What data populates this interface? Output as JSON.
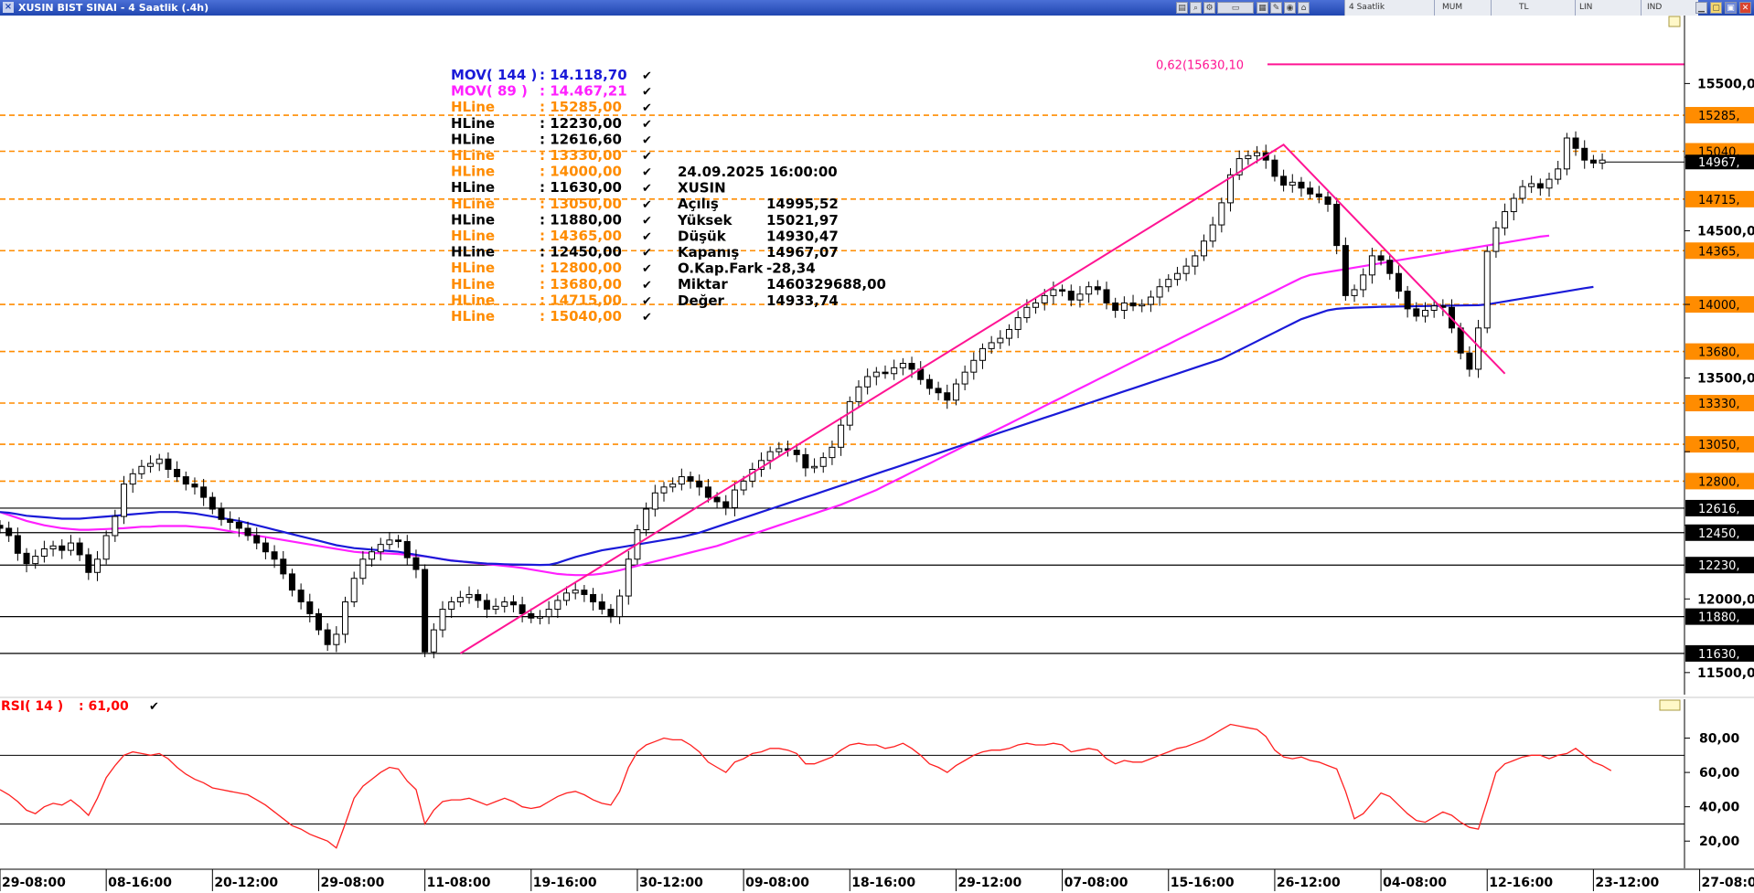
{
  "window": {
    "title": "XUSIN BIST SINAI - 4 Saatlik (.4h)"
  },
  "toolbar": {
    "period": "4 Saatlik",
    "chart_style": "MUM",
    "currency": "TL",
    "scale": "LIN",
    "mode": "IND"
  },
  "colors": {
    "ma144": "#1a1ad8",
    "ma89": "#ff20ff",
    "hline_orange": "#ff8c00",
    "hline_black": "#000000",
    "trend": "#ff1493",
    "rsi": "#ff2020",
    "fib": "#ff1493"
  },
  "legend": [
    {
      "name": "MOV( 144 )",
      "value": ": 14.118,70",
      "color": "#1a1ad8"
    },
    {
      "name": "MOV( 89 )",
      "value": ": 14.467,21",
      "color": "#ff20ff"
    },
    {
      "name": "HLine",
      "value": ": 15285,00",
      "color": "#ff8c00"
    },
    {
      "name": "HLine",
      "value": ": 12230,00",
      "color": "#000000"
    },
    {
      "name": "HLine",
      "value": ": 12616,60",
      "color": "#000000"
    },
    {
      "name": "HLine",
      "value": ": 13330,00",
      "color": "#ff8c00"
    },
    {
      "name": "HLine",
      "value": ": 14000,00",
      "color": "#ff8c00"
    },
    {
      "name": "HLine",
      "value": ": 11630,00",
      "color": "#000000"
    },
    {
      "name": "HLine",
      "value": ": 13050,00",
      "color": "#ff8c00"
    },
    {
      "name": "HLine",
      "value": ": 11880,00",
      "color": "#000000"
    },
    {
      "name": "HLine",
      "value": ": 14365,00",
      "color": "#ff8c00"
    },
    {
      "name": "HLine",
      "value": ": 12450,00",
      "color": "#000000"
    },
    {
      "name": "HLine",
      "value": ": 12800,00",
      "color": "#ff8c00"
    },
    {
      "name": "HLine",
      "value": ": 13680,00",
      "color": "#ff8c00"
    },
    {
      "name": "HLine",
      "value": ": 14715,00",
      "color": "#ff8c00"
    },
    {
      "name": "HLine",
      "value": ": 15040,00",
      "color": "#ff8c00"
    }
  ],
  "info_box": {
    "datetime": "24.09.2025  16:00:00",
    "symbol": "XUSIN",
    "rows": [
      {
        "label": "Açılış",
        "value": "14995,52"
      },
      {
        "label": "Yüksek",
        "value": "15021,97"
      },
      {
        "label": "Düşük",
        "value": "14930,47"
      },
      {
        "label": "Kapanış",
        "value": "14967,07"
      },
      {
        "label": "O.Kap.Fark",
        "value": "-28,34"
      },
      {
        "label": "Miktar",
        "value": "1460329688,00"
      },
      {
        "label": "Değer",
        "value": "14933,74"
      }
    ]
  },
  "fib_label": "0,62(15630,10",
  "last_price_label": "14967,",
  "rsi_legend": {
    "name": "RSI( 14 )",
    "value": ": 61,00"
  },
  "chart_data": {
    "type": "candlestick",
    "price_axis": {
      "ylim": [
        11350,
        15850
      ],
      "ticks": [
        11500,
        12000,
        12500,
        13000,
        13500,
        14000,
        14500,
        15000,
        15500
      ],
      "tick_labels": [
        "11500,0",
        "12000,0",
        "",
        "",
        "13500,0",
        "",
        "14500,0",
        "",
        "15500,0"
      ]
    },
    "x_tick_labels": [
      "29-08:00",
      "08-16:00",
      "20-12:00",
      "29-08:00",
      "11-08:00",
      "19-16:00",
      "30-12:00",
      "09-08:00",
      "18-16:00",
      "29-12:00",
      "07-08:00",
      "15-16:00",
      "26-12:00",
      "04-08:00",
      "12-16:00",
      "23-12:00",
      "27-08:00"
    ],
    "x_tick_index": [
      0,
      12,
      24,
      36,
      48,
      60,
      72,
      84,
      96,
      108,
      120,
      132,
      144,
      156,
      168,
      180,
      192
    ],
    "hlines": [
      {
        "value": 15285,
        "label": "15285,",
        "style": "dashed",
        "color": "#ff8c00"
      },
      {
        "value": 15040,
        "label": "15040,",
        "style": "dashed",
        "color": "#ff8c00"
      },
      {
        "value": 14715,
        "label": "14715,",
        "style": "dashed",
        "color": "#ff8c00"
      },
      {
        "value": 14365,
        "label": "14365,",
        "style": "dashed",
        "color": "#ff8c00"
      },
      {
        "value": 14000,
        "label": "14000,",
        "style": "dashed",
        "color": "#ff8c00"
      },
      {
        "value": 13680,
        "label": "13680,",
        "style": "dashed",
        "color": "#ff8c00"
      },
      {
        "value": 13330,
        "label": "13330,",
        "style": "dashed",
        "color": "#ff8c00"
      },
      {
        "value": 13050,
        "label": "13050,",
        "style": "dashed",
        "color": "#ff8c00"
      },
      {
        "value": 12800,
        "label": "12800,",
        "style": "dashed",
        "color": "#ff8c00"
      },
      {
        "value": 12616.6,
        "label": "12616,",
        "style": "solid",
        "color": "#000000"
      },
      {
        "value": 12450,
        "label": "12450,",
        "style": "solid",
        "color": "#000000"
      },
      {
        "value": 12230,
        "label": "12230,",
        "style": "solid",
        "color": "#000000"
      },
      {
        "value": 11880,
        "label": "11880,",
        "style": "solid",
        "color": "#000000"
      },
      {
        "value": 11630,
        "label": "11630,",
        "style": "solid",
        "color": "#000000"
      }
    ],
    "fib_level": 15630.1,
    "last_price": 14967.07,
    "trendlines": [
      [
        [
          52,
          11630
        ],
        [
          145,
          15085
        ],
        [
          170,
          13530
        ]
      ]
    ],
    "closes": [
      12480,
      12430,
      12310,
      12240,
      12290,
      12340,
      12360,
      12330,
      12380,
      12300,
      12180,
      12270,
      12430,
      12560,
      12780,
      12850,
      12900,
      12920,
      12950,
      12880,
      12830,
      12780,
      12760,
      12690,
      12610,
      12540,
      12520,
      12480,
      12430,
      12380,
      12320,
      12270,
      12170,
      12060,
      11980,
      11900,
      11790,
      11690,
      11760,
      11980,
      12140,
      12270,
      12320,
      12370,
      12400,
      12390,
      12280,
      12200,
      11640,
      11790,
      11930,
      11980,
      12010,
      12030,
      11990,
      11930,
      11950,
      11980,
      11960,
      11900,
      11870,
      11880,
      11930,
      11990,
      12040,
      12060,
      12030,
      11980,
      11930,
      11880,
      12020,
      12270,
      12470,
      12610,
      12720,
      12760,
      12780,
      12830,
      12800,
      12760,
      12690,
      12660,
      12620,
      12740,
      12800,
      12880,
      12940,
      13000,
      13020,
      13010,
      12980,
      12890,
      12900,
      12960,
      13030,
      13180,
      13340,
      13440,
      13510,
      13540,
      13530,
      13570,
      13600,
      13560,
      13490,
      13430,
      13400,
      13350,
      13460,
      13540,
      13620,
      13700,
      13740,
      13770,
      13830,
      13910,
      13980,
      14010,
      14060,
      14100,
      14090,
      14030,
      14070,
      14120,
      14100,
      14010,
      13960,
      14010,
      13990,
      14000,
      14050,
      14120,
      14170,
      14210,
      14260,
      14330,
      14430,
      14540,
      14690,
      14880,
      14990,
      15010,
      15030,
      14980,
      14870,
      14810,
      14830,
      14790,
      14750,
      14730,
      14680,
      14400,
      14060,
      14100,
      14200,
      14330,
      14300,
      14210,
      14090,
      13970,
      13920,
      13960,
      13990,
      13980,
      13840,
      13670,
      13560,
      13840,
      14360,
      14520,
      14630,
      14720,
      14800,
      14820,
      14790,
      14850,
      14920,
      15130,
      15060,
      14980,
      14960,
      14980
    ],
    "ma144": [
      12590,
      12585,
      12575,
      12565,
      12560,
      12555,
      12550,
      12545,
      12545,
      12545,
      12550,
      12555,
      12560,
      12565,
      12570,
      12575,
      12580,
      12585,
      12590,
      12590,
      12590,
      12585,
      12580,
      12570,
      12560,
      12550,
      12540,
      12530,
      12515,
      12500,
      12485,
      12470,
      12455,
      12440,
      12425,
      12410,
      12395,
      12380,
      12365,
      12355,
      12345,
      12340,
      12335,
      12330,
      12325,
      12320,
      12310,
      12300,
      12290,
      12280,
      12270,
      12260,
      12255,
      12250,
      12245,
      12240,
      12238,
      12236,
      12234,
      12233,
      12232,
      12231,
      12232,
      12245,
      12265,
      12285,
      12300,
      12315,
      12330,
      12340,
      12350,
      12360,
      12370,
      12380,
      12390,
      12400,
      12410,
      12420,
      12435,
      12450,
      12470,
      12490,
      12510,
      12530,
      12550,
      12570,
      12590,
      12610,
      12630,
      12650,
      12670,
      12690,
      12710,
      12730,
      12750,
      12770,
      12790,
      12810,
      12830,
      12850,
      12870,
      12890,
      12910,
      12930,
      12950,
      12970,
      12990,
      13010,
      13030,
      13050,
      13070,
      13090,
      13110,
      13130,
      13150,
      13170,
      13190,
      13210,
      13230,
      13250,
      13270,
      13290,
      13310,
      13330,
      13350,
      13370,
      13390,
      13410,
      13430,
      13450,
      13470,
      13490,
      13510,
      13530,
      13550,
      13570,
      13590,
      13610,
      13630,
      13660,
      13690,
      13720,
      13750,
      13780,
      13810,
      13840,
      13870,
      13900,
      13920,
      13940,
      13960,
      13970,
      13975,
      13978,
      13980,
      13982,
      13984,
      13985,
      13986,
      13987,
      13988,
      13989,
      13990,
      13991,
      13992,
      13993,
      13994,
      13995,
      14000,
      14010,
      14020,
      14030,
      14040,
      14050,
      14060,
      14070,
      14080,
      14090,
      14100,
      14110,
      14119
    ],
    "ma89": [
      12590,
      12570,
      12550,
      12530,
      12515,
      12500,
      12490,
      12480,
      12475,
      12470,
      12470,
      12472,
      12475,
      12478,
      12480,
      12485,
      12490,
      12490,
      12495,
      12495,
      12495,
      12495,
      12490,
      12485,
      12480,
      12470,
      12460,
      12450,
      12440,
      12430,
      12420,
      12410,
      12400,
      12390,
      12380,
      12370,
      12360,
      12350,
      12340,
      12330,
      12320,
      12315,
      12312,
      12310,
      12308,
      12305,
      12300,
      12295,
      12290,
      12280,
      12270,
      12262,
      12255,
      12248,
      12242,
      12236,
      12230,
      12224,
      12218,
      12210,
      12200,
      12190,
      12180,
      12170,
      12165,
      12162,
      12162,
      12165,
      12172,
      12182,
      12195,
      12210,
      12225,
      12240,
      12255,
      12270,
      12285,
      12300,
      12315,
      12330,
      12345,
      12360,
      12380,
      12400,
      12420,
      12440,
      12460,
      12480,
      12500,
      12520,
      12540,
      12560,
      12580,
      12600,
      12620,
      12640,
      12665,
      12690,
      12715,
      12740,
      12770,
      12800,
      12830,
      12860,
      12890,
      12920,
      12950,
      12980,
      13010,
      13040,
      13070,
      13100,
      13130,
      13160,
      13190,
      13220,
      13250,
      13280,
      13310,
      13340,
      13370,
      13400,
      13430,
      13460,
      13490,
      13520,
      13550,
      13580,
      13610,
      13640,
      13670,
      13700,
      13730,
      13760,
      13790,
      13820,
      13850,
      13880,
      13910,
      13940,
      13970,
      14000,
      14030,
      14060,
      14090,
      14120,
      14150,
      14180,
      14200,
      14210,
      14220,
      14230,
      14240,
      14250,
      14260,
      14270,
      14280,
      14290,
      14300,
      14310,
      14320,
      14330,
      14340,
      14350,
      14360,
      14370,
      14380,
      14390,
      14400,
      14410,
      14420,
      14430,
      14440,
      14450,
      14460,
      14467
    ],
    "rsi": {
      "ylim": [
        10,
        92
      ],
      "ticks": [
        20,
        40,
        60,
        80
      ],
      "tick_labels": [
        "20,00",
        "40,00",
        "60,00",
        "80,00"
      ],
      "hlines": [
        30,
        70
      ],
      "values": [
        50,
        47,
        43,
        38,
        36,
        40,
        42,
        41,
        44,
        40,
        35,
        45,
        57,
        64,
        70,
        72,
        71,
        70,
        71,
        68,
        63,
        59,
        56,
        54,
        51,
        50,
        49,
        48,
        47,
        44,
        41,
        37,
        33,
        29,
        27,
        24,
        22,
        20,
        16,
        30,
        45,
        52,
        56,
        60,
        63,
        62,
        55,
        50,
        30,
        38,
        43,
        44,
        44,
        45,
        43,
        41,
        43,
        45,
        43,
        40,
        39,
        40,
        43,
        46,
        48,
        49,
        47,
        44,
        42,
        41,
        49,
        63,
        72,
        76,
        78,
        80,
        79,
        79,
        76,
        72,
        66,
        63,
        60,
        66,
        68,
        71,
        72,
        74,
        74,
        73,
        71,
        65,
        65,
        67,
        69,
        73,
        76,
        77,
        76,
        76,
        74,
        75,
        77,
        74,
        70,
        65,
        63,
        60,
        64,
        67,
        70,
        72,
        73,
        73,
        74,
        76,
        77,
        76,
        76,
        77,
        76,
        72,
        73,
        74,
        73,
        68,
        65,
        67,
        66,
        66,
        68,
        70,
        72,
        74,
        75,
        77,
        79,
        82,
        85,
        88,
        87,
        86,
        85,
        81,
        73,
        69,
        68,
        69,
        67,
        66,
        64,
        62,
        49,
        33,
        36,
        42,
        48,
        46,
        41,
        36,
        32,
        31,
        34,
        37,
        35,
        31,
        28,
        27,
        43,
        60,
        65,
        67,
        69,
        70,
        70,
        68,
        70,
        71,
        74,
        70,
        66,
        64,
        61
      ]
    }
  }
}
